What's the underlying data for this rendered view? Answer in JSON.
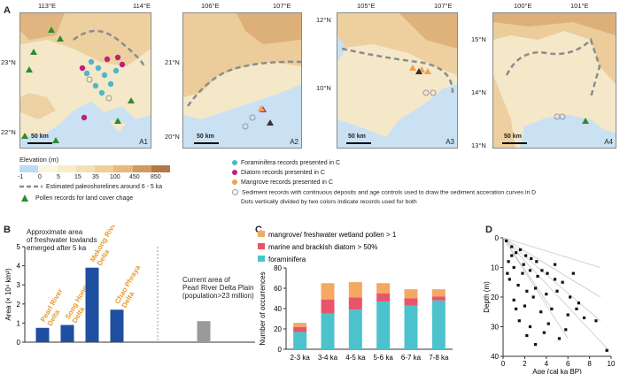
{
  "panels": {
    "a": "A",
    "b": "B",
    "c": "C",
    "d": "D"
  },
  "maps": [
    {
      "id": "A1",
      "xticks": [
        "113°E",
        "114°E"
      ],
      "yticks": [
        "23°N",
        "22°N"
      ],
      "scale": "50 km"
    },
    {
      "id": "A2",
      "xticks": [
        "106°E",
        "107°E"
      ],
      "yticks": [
        "21°N",
        "20°N"
      ],
      "scale": "50 km"
    },
    {
      "id": "A3",
      "xticks": [
        "105°E",
        "107°E"
      ],
      "yticks": [
        "12°N",
        "10°N"
      ],
      "scale": "50 km"
    },
    {
      "id": "A4",
      "xticks": [
        "100°E",
        "101°E"
      ],
      "yticks": [
        "15°N",
        "14°N",
        "13°N"
      ],
      "scale": "50 km"
    }
  ],
  "legend": {
    "elevation_title": "Elevation (m)",
    "elevation_ticks": [
      "-1",
      "0",
      "5",
      "15",
      "35",
      "100",
      "450",
      "850"
    ],
    "elevation_colors": [
      "#bcdcf2",
      "#fbf6de",
      "#f8eccb",
      "#f5e0b3",
      "#f0cf98",
      "#e8b97c",
      "#d19a5e",
      "#b07a46"
    ],
    "paleoshoreline": "Estimated paleoshorelines around 6 - 5 ka",
    "pollen": "Pollen records for land cover chage",
    "foraminifera": "Foraminifera records presented in C",
    "diatom": "Diatom records presented in C",
    "mangrove": "Mangrove records presented in C",
    "sediment": "Sediment records with continuous deposits and age controls used to draw the sediment acceration curves in D",
    "dots_note": "Dots vertically divided by two colors indicate records used for both",
    "colors": {
      "foraminifera": "#4db8c8",
      "diatom": "#c0207a",
      "mangrove": "#f0a050",
      "pollen": "#2e8b2e",
      "shoreline": "#8c8c8c",
      "map_sea": "#c9e1f3",
      "map_land": "#f4e8c9"
    }
  },
  "chart_data": [
    {
      "panel": "B",
      "type": "bar",
      "categories": [
        "Pearl River Delta",
        "Song Hong Delta",
        "Mekong River Delta",
        "Chao Phraya Delta",
        "Current Pearl River Delta Plain"
      ],
      "values": [
        0.75,
        0.9,
        3.9,
        1.7,
        1.1
      ],
      "colors": [
        "#1f4fa0",
        "#1f4fa0",
        "#1f4fa0",
        "#1f4fa0",
        "#9a9a9a"
      ],
      "ylabel": "Area (× 10⁴ km²)",
      "ylim": [
        0,
        5
      ],
      "yticks": [
        "0",
        "1",
        "2",
        "3",
        "4",
        "5"
      ],
      "annotation_left": [
        "Approximate area",
        "of freshwater lowlands",
        "emerged after 5 ka"
      ],
      "annotation_right": [
        "Current area of",
        "Pearl River Delta Plain",
        "(population>23 million)"
      ]
    },
    {
      "panel": "C",
      "type": "bar",
      "stacked": true,
      "categories": [
        "2-3 ka",
        "3-4 ka",
        "4-5 ka",
        "5-6 ka",
        "6-7 ka",
        "7-8 ka"
      ],
      "series": [
        {
          "name": "foraminifera",
          "color": "#4cc3cc",
          "values": [
            17,
            35,
            39,
            47,
            43,
            48
          ]
        },
        {
          "name": "marine and brackish diatom > 50%",
          "color": "#e8556a",
          "values": [
            5,
            14,
            12,
            8,
            7,
            4
          ]
        },
        {
          "name": "mangrove/ freshwater wetland pollen > 1",
          "color": "#f5a862",
          "values": [
            4,
            16,
            15,
            10,
            9,
            7
          ]
        }
      ],
      "ylabel": "Number of occurrences",
      "ylim": [
        0,
        80
      ],
      "yticks": [
        "0",
        "20",
        "40",
        "60",
        "80"
      ]
    },
    {
      "panel": "D",
      "type": "scatter",
      "xlabel": "Age (cal ka BP)",
      "ylabel": "Depth (m)",
      "xlim": [
        0,
        10
      ],
      "ylim": [
        0,
        40
      ],
      "xticks": [
        "0",
        "2",
        "4",
        "6",
        "8",
        "10"
      ],
      "yticks": [
        "0",
        "10",
        "20",
        "30",
        "40"
      ],
      "points": [
        [
          0.3,
          1
        ],
        [
          0.8,
          3
        ],
        [
          1.2,
          5
        ],
        [
          1.6,
          4
        ],
        [
          2.1,
          6
        ],
        [
          2.6,
          7
        ],
        [
          3.1,
          8
        ],
        [
          0.5,
          8
        ],
        [
          1.0,
          10
        ],
        [
          1.8,
          12
        ],
        [
          2.5,
          11
        ],
        [
          3.2,
          13
        ],
        [
          4.1,
          12
        ],
        [
          4.8,
          14
        ],
        [
          5.5,
          15
        ],
        [
          0.6,
          14
        ],
        [
          1.4,
          16
        ],
        [
          2.2,
          18
        ],
        [
          3.0,
          17
        ],
        [
          4.0,
          19
        ],
        [
          5.0,
          18
        ],
        [
          6.2,
          20
        ],
        [
          7.0,
          22
        ],
        [
          1.0,
          21
        ],
        [
          2.0,
          23
        ],
        [
          3.5,
          25
        ],
        [
          4.5,
          24
        ],
        [
          6.0,
          26
        ],
        [
          7.5,
          27
        ],
        [
          8.6,
          28
        ],
        [
          1.5,
          28
        ],
        [
          2.5,
          30
        ],
        [
          3.8,
          32
        ],
        [
          5.2,
          34
        ],
        [
          0.8,
          6
        ],
        [
          1.9,
          9
        ],
        [
          3.6,
          11
        ],
        [
          2.8,
          20
        ],
        [
          4.2,
          29
        ],
        [
          5.8,
          31
        ],
        [
          6.8,
          24
        ],
        [
          9.6,
          38
        ],
        [
          0.4,
          12
        ],
        [
          1.2,
          24
        ],
        [
          2.2,
          33
        ],
        [
          3.0,
          36
        ],
        [
          4.8,
          9
        ],
        [
          6.5,
          12
        ]
      ]
    }
  ]
}
